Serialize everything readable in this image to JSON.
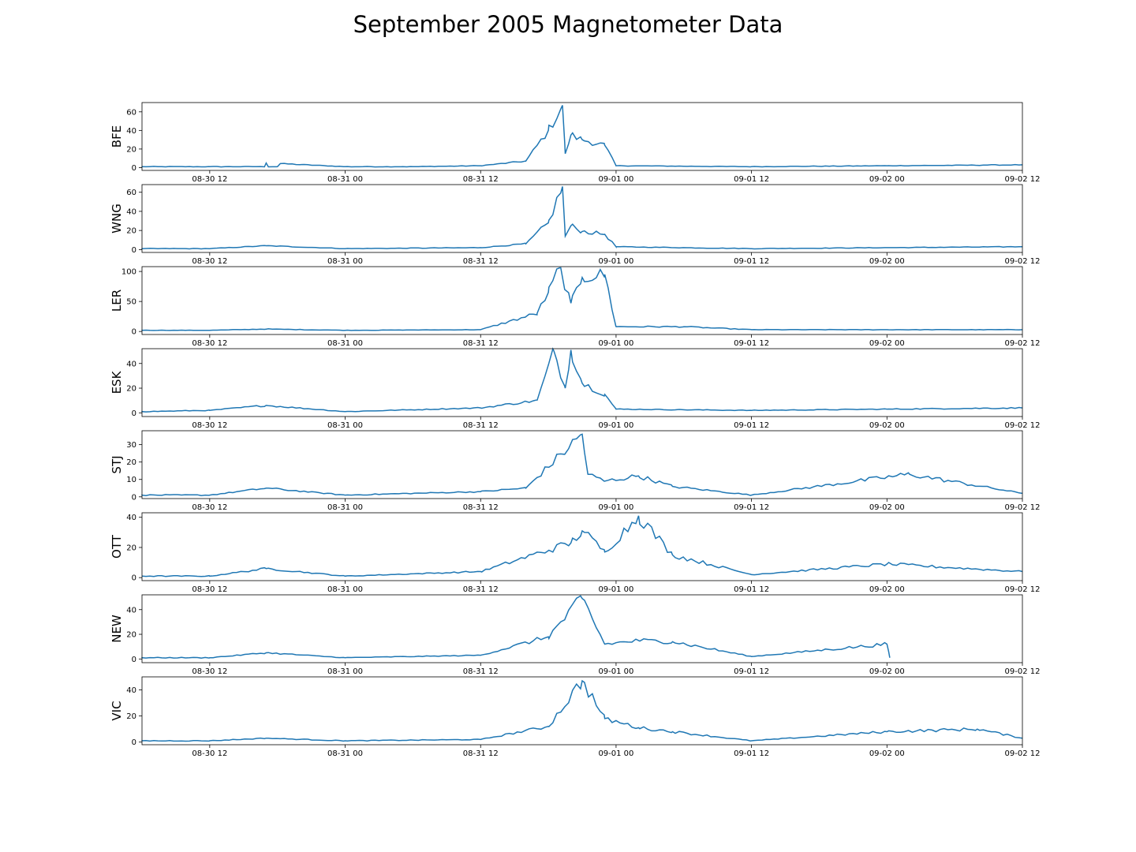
{
  "title": "September 2005 Magnetometer Data",
  "chart_data": {
    "type": "line",
    "title": "September 2005 Magnetometer Data",
    "line_color": "#1f77b4",
    "x_range": [
      "2005-08-30 06:00",
      "2005-09-02 12:00"
    ],
    "x_ticks": [
      "08-30 12",
      "08-31 00",
      "08-31 12",
      "09-01 00",
      "09-01 12",
      "09-02 00",
      "09-02 12"
    ],
    "panels": [
      {
        "ylabel": "BFE",
        "ylim": [
          -3,
          70
        ],
        "yticks": [
          0,
          20,
          40,
          60
        ],
        "series": {
          "x": [
            "2005-08-30 06:00",
            "2005-08-30 12:00",
            "2005-08-30 18:00",
            "2005-08-30 17:00",
            "2005-08-31 00:00",
            "2005-08-31 06:00",
            "2005-08-31 12:00",
            "2005-08-31 16:00",
            "2005-08-31 18:00",
            "2005-08-31 19:15",
            "2005-08-31 19:30",
            "2005-08-31 20:00",
            "2005-08-31 21:00",
            "2005-08-31 23:00",
            "2005-09-01 00:00",
            "2005-09-01 12:00",
            "2005-09-02 00:00",
            "2005-09-02 12:00"
          ],
          "y": [
            1,
            1,
            1,
            5,
            1,
            1,
            2,
            7,
            40,
            67,
            15,
            35,
            30,
            24,
            2,
            1,
            2,
            3
          ]
        }
      },
      {
        "ylabel": "WNG",
        "ylim": [
          -3,
          68
        ],
        "yticks": [
          0,
          20,
          40,
          60
        ],
        "series": {
          "x": [
            "2005-08-30 06:00",
            "2005-08-30 12:00",
            "2005-08-30 17:00",
            "2005-08-31 00:00",
            "2005-08-31 12:00",
            "2005-08-31 16:00",
            "2005-08-31 18:00",
            "2005-08-31 19:15",
            "2005-08-31 19:30",
            "2005-08-31 20:00",
            "2005-08-31 21:00",
            "2005-08-31 23:00",
            "2005-09-01 00:00",
            "2005-09-01 12:00",
            "2005-09-02 00:00",
            "2005-09-02 12:00"
          ],
          "y": [
            1,
            1,
            4,
            1,
            2,
            6,
            28,
            66,
            14,
            25,
            19,
            16,
            3,
            1,
            2,
            3
          ]
        }
      },
      {
        "ylabel": "LER",
        "ylim": [
          -5,
          108
        ],
        "yticks": [
          0,
          50,
          100
        ],
        "series": {
          "x": [
            "2005-08-30 06:00",
            "2005-08-30 12:00",
            "2005-08-30 17:00",
            "2005-08-31 00:00",
            "2005-08-31 12:00",
            "2005-08-31 17:00",
            "2005-08-31 18:00",
            "2005-08-31 19:00",
            "2005-08-31 20:00",
            "2005-08-31 21:00",
            "2005-08-31 23:00",
            "2005-09-01 00:00",
            "2005-09-01 06:00",
            "2005-09-01 12:00",
            "2005-09-02 00:00",
            "2005-09-02 12:00"
          ],
          "y": [
            2,
            2,
            4,
            2,
            3,
            30,
            65,
            106,
            47,
            90,
            95,
            8,
            8,
            3,
            3,
            3
          ]
        }
      },
      {
        "ylabel": "ESK",
        "ylim": [
          -3,
          52
        ],
        "yticks": [
          0,
          20,
          40
        ],
        "series": {
          "x": [
            "2005-08-30 06:00",
            "2005-08-30 12:00",
            "2005-08-30 17:00",
            "2005-08-31 00:00",
            "2005-08-31 12:00",
            "2005-08-31 17:00",
            "2005-08-31 18:30",
            "2005-08-31 19:30",
            "2005-08-31 20:00",
            "2005-08-31 21:00",
            "2005-08-31 23:00",
            "2005-09-01 00:00",
            "2005-09-01 12:00",
            "2005-09-02 00:00",
            "2005-09-02 12:00"
          ],
          "y": [
            1,
            2,
            6,
            1,
            4,
            10,
            50,
            20,
            51,
            24,
            15,
            3,
            2,
            3,
            4
          ]
        }
      },
      {
        "ylabel": "STJ",
        "ylim": [
          -1,
          38
        ],
        "yticks": [
          0,
          10,
          20,
          30
        ],
        "series": {
          "x": [
            "2005-08-30 06:00",
            "2005-08-30 12:00",
            "2005-08-30 17:00",
            "2005-08-31 00:00",
            "2005-08-31 12:00",
            "2005-08-31 16:00",
            "2005-08-31 21:00",
            "2005-08-31 21:30",
            "2005-08-31 23:00",
            "2005-09-01 02:00",
            "2005-09-01 05:00",
            "2005-09-01 12:00",
            "2005-09-02 02:00",
            "2005-09-02 12:00"
          ],
          "y": [
            1,
            1,
            5,
            1,
            3,
            5,
            36,
            13,
            9,
            12,
            6,
            1,
            13,
            2
          ]
        }
      },
      {
        "ylabel": "OTT",
        "ylim": [
          -2,
          43
        ],
        "yticks": [
          0,
          20,
          40
        ],
        "series": {
          "x": [
            "2005-08-30 06:00",
            "2005-08-30 12:00",
            "2005-08-30 17:00",
            "2005-08-31 00:00",
            "2005-08-31 12:00",
            "2005-08-31 20:00",
            "2005-08-31 21:00",
            "2005-08-31 23:00",
            "2005-09-01 02:00",
            "2005-09-01 05:00",
            "2005-09-01 12:00",
            "2005-09-02 00:00",
            "2005-09-02 12:00"
          ],
          "y": [
            1,
            1,
            6,
            1,
            4,
            23,
            31,
            17,
            41,
            15,
            2,
            9,
            4
          ]
        }
      },
      {
        "ylabel": "NEW",
        "ylim": [
          -3,
          52
        ],
        "yticks": [
          0,
          20,
          40
        ],
        "series": {
          "x": [
            "2005-08-30 06:00",
            "2005-08-30 12:00",
            "2005-08-30 17:00",
            "2005-08-31 00:00",
            "2005-08-31 12:00",
            "2005-08-31 18:00",
            "2005-08-31 21:00",
            "2005-08-31 23:00",
            "2005-09-01 02:00",
            "2005-09-01 05:00",
            "2005-09-01 12:00",
            "2005-09-02 00:00",
            "2005-09-02 00:15"
          ],
          "y": [
            1,
            1,
            5,
            1,
            3,
            18,
            49,
            12,
            15,
            14,
            2,
            12,
            1
          ]
        }
      },
      {
        "ylabel": "VIC",
        "ylim": [
          -2,
          50
        ],
        "yticks": [
          0,
          20,
          40
        ],
        "series": {
          "x": [
            "2005-08-30 06:00",
            "2005-08-30 12:00",
            "2005-08-30 17:00",
            "2005-08-31 00:00",
            "2005-08-31 12:00",
            "2005-08-31 18:00",
            "2005-08-31 21:00",
            "2005-08-31 23:00",
            "2005-09-01 02:00",
            "2005-09-01 05:00",
            "2005-09-01 12:00",
            "2005-09-02 00:00",
            "2005-09-02 08:00",
            "2005-09-02 12:00"
          ],
          "y": [
            1,
            1,
            3,
            1,
            2,
            12,
            47,
            18,
            11,
            8,
            1,
            8,
            10,
            3
          ]
        }
      }
    ]
  }
}
